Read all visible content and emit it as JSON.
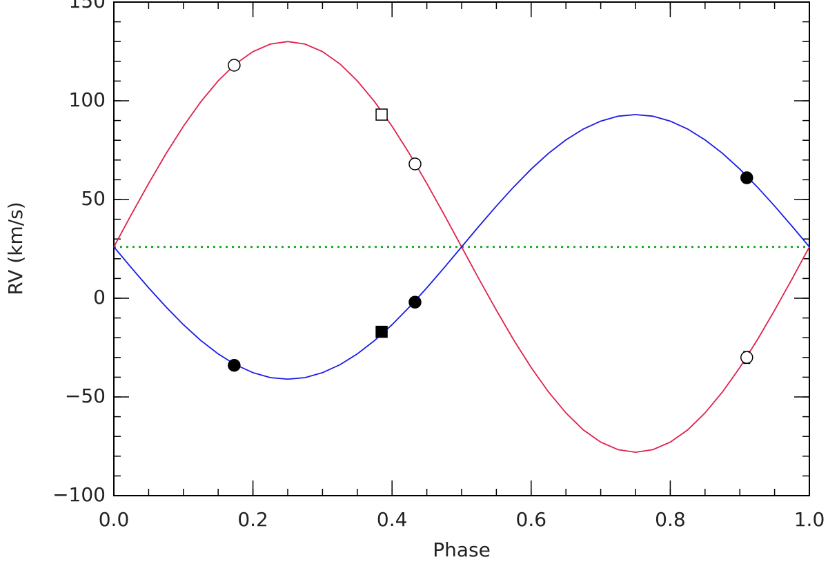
{
  "chart_data": {
    "type": "line",
    "xlabel": "Phase",
    "ylabel": "RV (km/s)",
    "xlim": [
      0,
      1
    ],
    "ylim": [
      -100,
      150
    ],
    "xticks": [
      {
        "value": 0,
        "label": "0.0"
      },
      0.2,
      0.4,
      0.6,
      0.8,
      {
        "value": 1,
        "label": "1.0"
      }
    ],
    "yticks": [
      {
        "value": -100,
        "label": "−100"
      },
      {
        "value": -50,
        "label": "−50"
      },
      0,
      50,
      100,
      150
    ],
    "xminor": 0.05,
    "yminor": 10,
    "gamma": 26,
    "gamma_color": "#22aa22",
    "x": [
      0,
      0.025,
      0.05,
      0.075,
      0.1,
      0.125,
      0.15,
      0.175,
      0.2,
      0.225,
      0.25,
      0.275,
      0.3,
      0.325,
      0.35,
      0.375,
      0.4,
      0.425,
      0.45,
      0.475,
      0.5,
      0.525,
      0.55,
      0.575,
      0.6,
      0.625,
      0.65,
      0.675,
      0.7,
      0.725,
      0.75,
      0.775,
      0.8,
      0.825,
      0.85,
      0.875,
      0.9,
      0.925,
      0.95,
      0.975,
      1
    ],
    "series": [
      {
        "color": "#e0204a",
        "values": [
          26,
          42.3,
          58.1,
          73.2,
          87.1,
          99.5,
          110.1,
          118.7,
          124.9,
          128.7,
          130,
          128.7,
          124.9,
          118.7,
          110.1,
          99.5,
          87.1,
          73.2,
          58.1,
          42.3,
          26,
          9.7,
          -6.1,
          -21.2,
          -35.1,
          -47.5,
          -58.1,
          -66.7,
          -72.9,
          -76.7,
          -78,
          -76.7,
          -72.9,
          -66.7,
          -58.1,
          -47.5,
          -35.1,
          -21.2,
          -6.1,
          9.7,
          26
        ]
      },
      {
        "color": "#1a1ae6",
        "values": [
          26,
          15.5,
          5.3,
          -4.4,
          -13.4,
          -21.4,
          -28.2,
          -33.7,
          -37.7,
          -40.2,
          -41,
          -40.2,
          -37.7,
          -33.7,
          -28.2,
          -21.4,
          -13.4,
          -4.4,
          5.3,
          15.5,
          26,
          36.5,
          46.7,
          56.4,
          65.4,
          73.4,
          80.2,
          85.7,
          89.7,
          92.2,
          93,
          92.2,
          89.7,
          85.7,
          80.2,
          73.4,
          65.4,
          56.4,
          46.7,
          36.5,
          26
        ]
      }
    ],
    "points": [
      {
        "marker": "circle",
        "filled": false,
        "x": [
          0.173,
          0.433,
          0.91
        ],
        "values": [
          118,
          68,
          -30
        ],
        "errors": [
          null,
          null,
          3
        ]
      },
      {
        "marker": "square",
        "filled": false,
        "x": [
          0.385
        ],
        "values": [
          93
        ]
      },
      {
        "marker": "circle",
        "filled": true,
        "x": [
          0.173,
          0.433,
          0.91
        ],
        "values": [
          -34,
          -2,
          61
        ]
      },
      {
        "marker": "square",
        "filled": true,
        "x": [
          0.385
        ],
        "values": [
          -17
        ]
      }
    ]
  }
}
